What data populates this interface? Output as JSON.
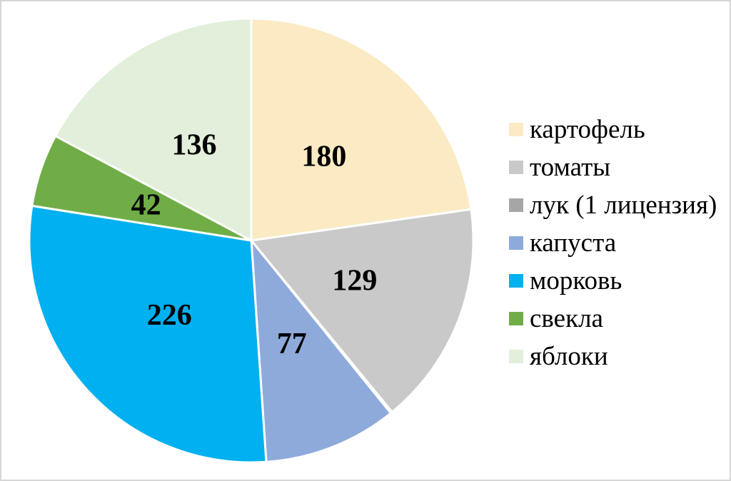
{
  "chart_data": {
    "type": "pie",
    "title": "",
    "legend_position": "right",
    "start_angle_deg": 0,
    "direction": "clockwise",
    "total": 791,
    "separator_color": "#ffffff",
    "value_label_color": "#000000",
    "slices": [
      {
        "label": "картофель",
        "value": 180,
        "color": "#FBEAC3",
        "value_label": "180"
      },
      {
        "label": "томаты",
        "value": 129,
        "color": "#C9C9C9",
        "value_label": "129"
      },
      {
        "label": "лук (1 лицензия)",
        "value": 1,
        "color": "#A6A6A6",
        "value_label": ""
      },
      {
        "label": "капуста",
        "value": 77,
        "color": "#8EAADB",
        "value_label": "77"
      },
      {
        "label": "морковь",
        "value": 226,
        "color": "#00B0F0",
        "value_label": "226"
      },
      {
        "label": "свекла",
        "value": 42,
        "color": "#70AD47",
        "value_label": "42"
      },
      {
        "label": "яблоки",
        "value": 136,
        "color": "#E2EFDA",
        "value_label": "136"
      }
    ]
  }
}
